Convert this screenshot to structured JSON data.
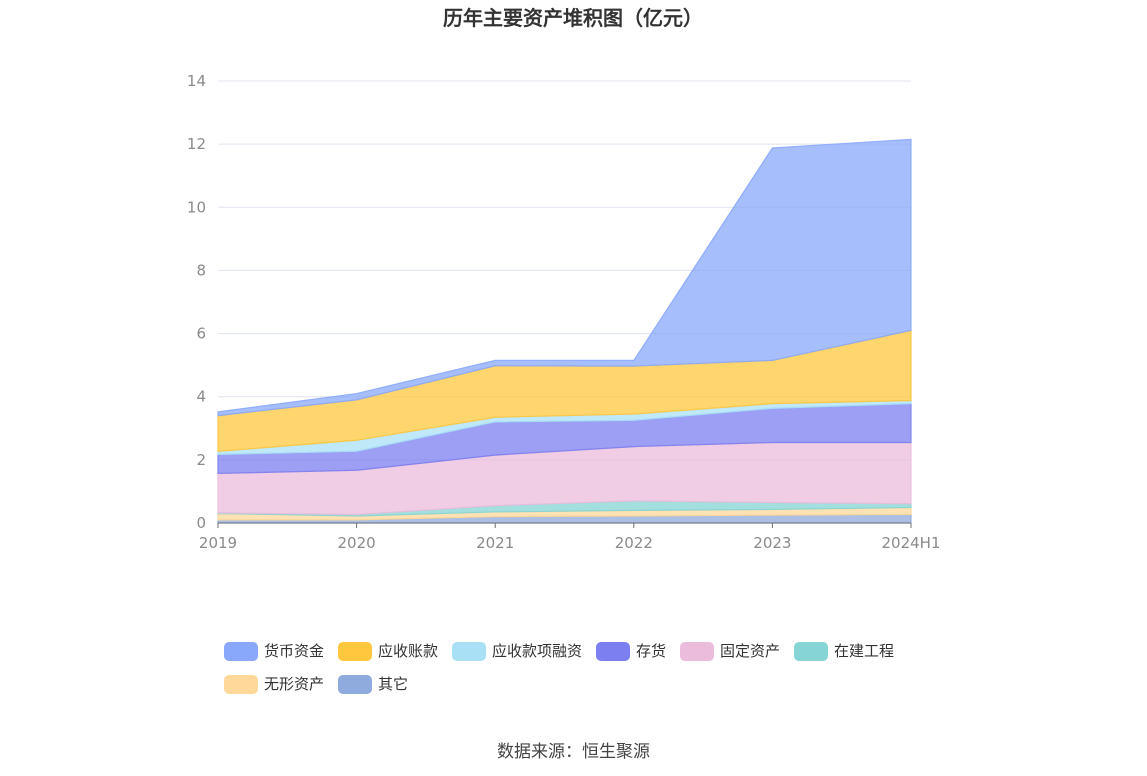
{
  "chart_data": {
    "type": "area",
    "stacked": true,
    "title": "历年主要资产堆积图（亿元）",
    "categories": [
      "2019",
      "2020",
      "2021",
      "2022",
      "2023",
      "2024H1"
    ],
    "ylim": [
      0,
      14
    ],
    "yticks": [
      "0",
      "2",
      "4",
      "6",
      "8",
      "10",
      "12",
      "14"
    ],
    "grid": true,
    "legend_position": "bottom",
    "series": [
      {
        "name": "其它",
        "color": "#8faadc",
        "values": [
          0.1,
          0.1,
          0.2,
          0.22,
          0.25,
          0.27
        ]
      },
      {
        "name": "无形资产",
        "color": "#ffd89a",
        "values": [
          0.2,
          0.12,
          0.15,
          0.18,
          0.18,
          0.22
        ]
      },
      {
        "name": "在建工程",
        "color": "#86d4d4",
        "values": [
          0.02,
          0.05,
          0.2,
          0.3,
          0.22,
          0.12
        ]
      },
      {
        "name": "固定资产",
        "color": "#ebbcdc",
        "values": [
          1.25,
          1.4,
          1.6,
          1.72,
          1.9,
          1.94
        ]
      },
      {
        "name": "存货",
        "color": "#7b7ff0",
        "values": [
          0.6,
          0.6,
          1.05,
          0.83,
          1.08,
          1.23
        ]
      },
      {
        "name": "应收款项融资",
        "color": "#a9e0f5",
        "values": [
          0.1,
          0.35,
          0.15,
          0.2,
          0.15,
          0.1
        ]
      },
      {
        "name": "应收账款",
        "color": "#ffc73d",
        "values": [
          1.13,
          1.28,
          1.63,
          1.52,
          1.37,
          2.22
        ]
      },
      {
        "name": "货币资金",
        "color": "#8aa8fb",
        "values": [
          0.12,
          0.2,
          0.17,
          0.18,
          6.73,
          6.05
        ]
      }
    ],
    "legend_order": [
      "货币资金",
      "应收账款",
      "应收款项融资",
      "存货",
      "固定资产",
      "在建工程",
      "无形资产",
      "其它"
    ]
  },
  "source": "数据来源：恒生聚源"
}
